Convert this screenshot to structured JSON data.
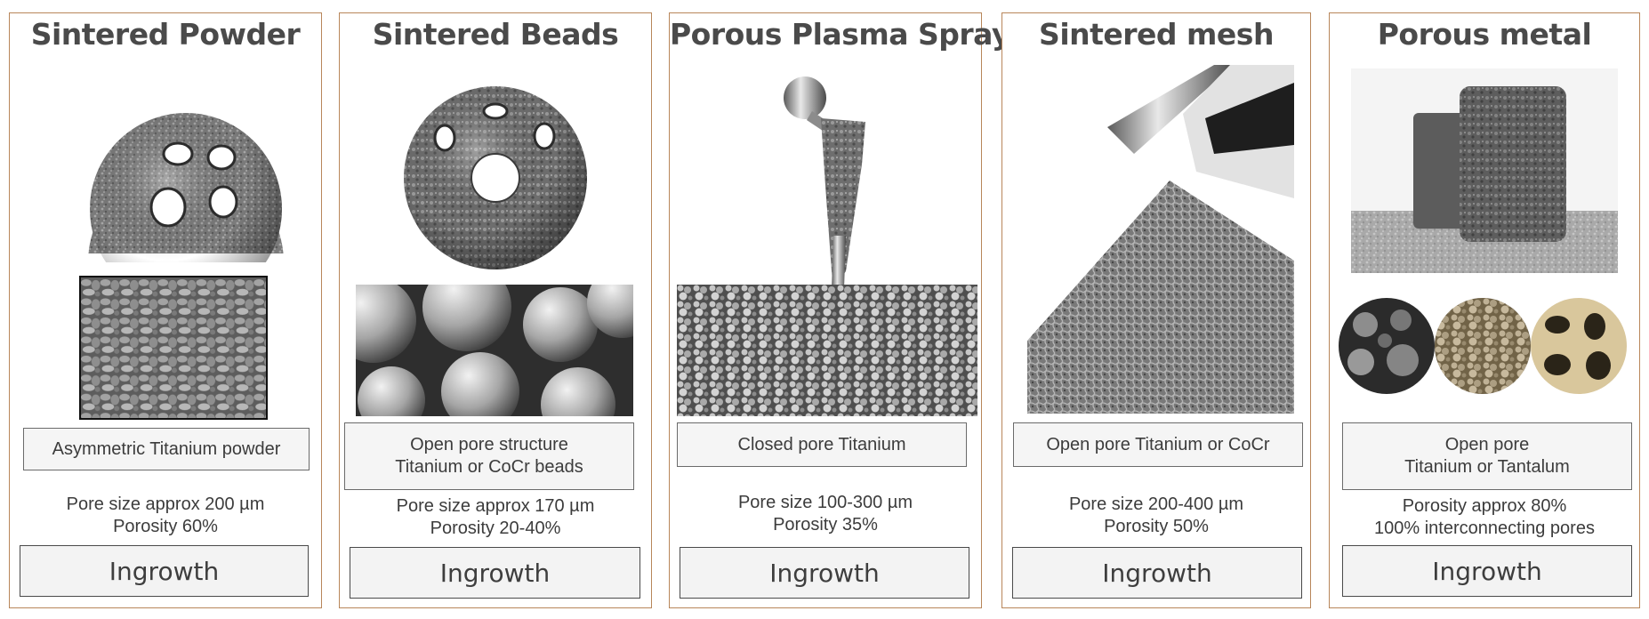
{
  "panels": [
    {
      "title": "Sintered Powder",
      "description": [
        "Asymmetric Titanium powder"
      ],
      "stats": [
        "Pore size approx 200  µm",
        "Porosity 60%"
      ],
      "button": "Ingrowth"
    },
    {
      "title": "Sintered Beads",
      "description": [
        "Open pore structure",
        "Titanium or CoCr beads"
      ],
      "stats": [
        "Pore size approx 170  µm",
        "Porosity 20-40%"
      ],
      "button": "Ingrowth"
    },
    {
      "title": "Porous Plasma Spray",
      "description": [
        "Closed pore  Titanium"
      ],
      "stats": [
        "Pore size 100-300  µm",
        "Porosity 35%"
      ],
      "button": "Ingrowth"
    },
    {
      "title": "Sintered mesh",
      "description": [
        "Open pore Titanium or CoCr"
      ],
      "stats": [
        "Pore size 200-400  µm",
        "Porosity 50%"
      ],
      "button": "Ingrowth"
    },
    {
      "title": "Porous metal",
      "description": [
        "Open pore",
        "Titanium or Tantalum"
      ],
      "stats": [
        "Porosity approx 80%",
        "100%  interconnecting pores"
      ],
      "button": "Ingrowth"
    }
  ],
  "colors": {
    "panel_border": "#b8865a",
    "box_border": "#6b6b6b",
    "box_fill": "#f5f5f5"
  }
}
